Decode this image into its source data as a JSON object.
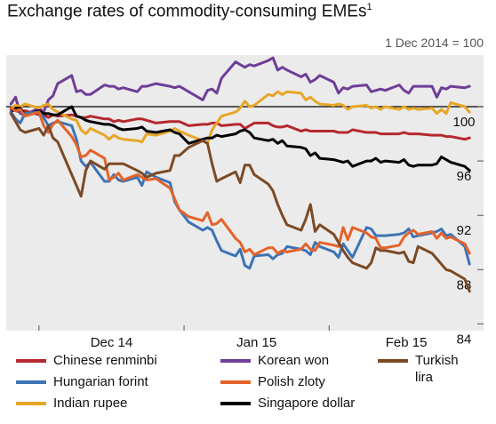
{
  "chart_data": {
    "type": "line",
    "title": "Exchange rates of commodity-consuming EMEs",
    "title_footnote": "1",
    "subtitle": "1 Dec 2014 = 100",
    "x_ticks": [
      "Dec 14",
      "Jan 15",
      "Feb 15"
    ],
    "x_tick_dates": [
      "2014-12-01",
      "2015-01-01",
      "2015-02-01"
    ],
    "x_range": [
      "2014-11-24",
      "2015-03-06"
    ],
    "x_dates": [
      "2014-11-25",
      "2014-11-26",
      "2014-11-27",
      "2014-11-28",
      "2014-12-01",
      "2014-12-02",
      "2014-12-03",
      "2014-12-04",
      "2014-12-05",
      "2014-12-08",
      "2014-12-09",
      "2014-12-10",
      "2014-12-11",
      "2014-12-12",
      "2014-12-15",
      "2014-12-16",
      "2014-12-17",
      "2014-12-18",
      "2014-12-19",
      "2014-12-22",
      "2014-12-23",
      "2014-12-24",
      "2014-12-26",
      "2014-12-29",
      "2014-12-30",
      "2014-12-31",
      "2015-01-02",
      "2015-01-05",
      "2015-01-06",
      "2015-01-07",
      "2015-01-08",
      "2015-01-09",
      "2015-01-12",
      "2015-01-13",
      "2015-01-14",
      "2015-01-15",
      "2015-01-16",
      "2015-01-19",
      "2015-01-20",
      "2015-01-21",
      "2015-01-22",
      "2015-01-23",
      "2015-01-26",
      "2015-01-27",
      "2015-01-28",
      "2015-01-29",
      "2015-01-30",
      "2015-02-02",
      "2015-02-03",
      "2015-02-04",
      "2015-02-05",
      "2015-02-06",
      "2015-02-09",
      "2015-02-10",
      "2015-02-11",
      "2015-02-12",
      "2015-02-13",
      "2015-02-16",
      "2015-02-17",
      "2015-02-18",
      "2015-02-19",
      "2015-02-20",
      "2015-02-23",
      "2015-02-24",
      "2015-02-25",
      "2015-02-26",
      "2015-02-27",
      "2015-03-02",
      "2015-03-03"
    ],
    "y_axis_side": "right",
    "y_ticks": [
      84,
      88,
      92,
      96,
      100
    ],
    "ylim": [
      83.5,
      103.8
    ],
    "reference_line": 100,
    "legend_position": "bottom",
    "series": [
      {
        "name": "Chinese renminbi",
        "color": "#b5282e",
        "values": [
          99.8,
          99.7,
          99.6,
          99.7,
          99.4,
          99.4,
          99.2,
          99.4,
          99.3,
          99.4,
          99.3,
          99.2,
          99.2,
          99.3,
          99.1,
          99.1,
          98.9,
          99.0,
          98.9,
          99.1,
          99.1,
          99.0,
          98.8,
          98.9,
          98.9,
          98.9,
          98.6,
          98.7,
          98.7,
          98.8,
          98.8,
          98.6,
          98.7,
          98.7,
          98.4,
          98.6,
          98.8,
          98.8,
          98.6,
          98.5,
          98.5,
          98.6,
          98.2,
          98.3,
          98.2,
          98.2,
          98.2,
          98.2,
          98.1,
          98.1,
          98.1,
          98.3,
          98.1,
          98.1,
          98.1,
          98.0,
          98.0,
          98.0,
          98.1,
          98.0,
          98.0,
          98.0,
          97.9,
          97.9,
          97.9,
          97.8,
          97.8,
          97.6,
          97.7
        ]
      },
      {
        "name": "Korean won",
        "color": "#6f3e98",
        "values": [
          100.2,
          100.7,
          99.5,
          99.4,
          99.9,
          99.6,
          100.5,
          100.8,
          101.7,
          102.3,
          101.1,
          101.2,
          100.9,
          100.9,
          101.6,
          101.5,
          101.5,
          101.3,
          101.4,
          101.1,
          101.5,
          101.5,
          101.7,
          101.5,
          101.4,
          101.5,
          101.1,
          100.5,
          101.2,
          101.3,
          101.0,
          102.1,
          103.3,
          103.1,
          102.9,
          103.1,
          103.0,
          103.4,
          103.6,
          102.7,
          102.9,
          102.7,
          102.2,
          102.4,
          101.8,
          102.0,
          102.3,
          101.8,
          101.0,
          101.4,
          101.3,
          101.5,
          101.6,
          101.1,
          101.2,
          101.3,
          101.2,
          101.6,
          101.2,
          101.0,
          101.5,
          101.5,
          101.5,
          100.7,
          101.4,
          101.3,
          101.5,
          101.4,
          101.5
        ]
      },
      {
        "name": "Indian rupee",
        "color": "#e7a626",
        "values": [
          99.9,
          100.1,
          100.0,
          100.2,
          99.9,
          100.1,
          100.2,
          99.8,
          99.6,
          99.1,
          99.0,
          98.3,
          98.0,
          98.4,
          97.9,
          97.6,
          97.9,
          97.7,
          97.6,
          97.5,
          97.4,
          98.0,
          97.9,
          98.2,
          98.4,
          98.2,
          97.9,
          97.5,
          97.3,
          98.3,
          98.8,
          99.3,
          99.6,
          99.9,
          100.4,
          100.0,
          100.1,
          100.9,
          100.8,
          101.1,
          100.9,
          101.1,
          101.0,
          100.5,
          100.7,
          100.4,
          100.2,
          100.1,
          100.2,
          100.1,
          99.8,
          100.0,
          100.1,
          99.9,
          100.0,
          99.8,
          100.0,
          99.8,
          100.0,
          99.8,
          99.9,
          99.8,
          99.9,
          99.5,
          99.8,
          99.5,
          100.3,
          100.0,
          99.6
        ]
      },
      {
        "name": "Singapore dollar",
        "color": "#000000",
        "values": [
          99.6,
          99.9,
          99.9,
          99.4,
          99.7,
          99.5,
          99.5,
          99.4,
          99.4,
          100.0,
          99.3,
          99.2,
          99.0,
          98.9,
          98.7,
          98.7,
          98.6,
          98.4,
          98.3,
          98.4,
          98.5,
          98.2,
          98.1,
          98.3,
          98.1,
          98.0,
          97.3,
          97.6,
          97.7,
          97.7,
          97.9,
          97.8,
          98.0,
          98.2,
          98.3,
          98.1,
          97.7,
          97.5,
          97.6,
          97.3,
          97.5,
          97.1,
          97.0,
          96.9,
          96.4,
          96.6,
          96.2,
          96.1,
          96.0,
          95.9,
          96.0,
          95.6,
          96.0,
          96.0,
          96.2,
          95.9,
          96.0,
          95.9,
          96.1,
          95.7,
          95.6,
          95.7,
          95.7,
          95.8,
          96.3,
          96.1,
          95.9,
          95.6,
          95.3
        ]
      },
      {
        "name": "Hungarian forint",
        "color": "#3d73b5",
        "values": [
          99.6,
          99.1,
          98.8,
          99.5,
          99.6,
          99.2,
          98.6,
          98.8,
          98.9,
          98.6,
          97.6,
          96.0,
          95.6,
          95.9,
          94.5,
          94.5,
          95.0,
          94.6,
          94.5,
          94.8,
          94.2,
          95.2,
          94.8,
          94.4,
          93.0,
          92.4,
          91.5,
          90.9,
          91.1,
          90.9,
          90.1,
          89.4,
          89.0,
          89.5,
          88.3,
          88.1,
          89.0,
          89.1,
          88.8,
          89.1,
          89.2,
          89.7,
          89.5,
          89.4,
          89.1,
          90.0,
          89.7,
          89.3,
          88.9,
          89.9,
          89.4,
          88.9,
          91.1,
          91.0,
          90.5,
          90.5,
          90.5,
          90.6,
          90.7,
          91.0,
          90.4,
          90.5,
          90.7,
          90.8,
          91.0,
          90.5,
          90.6,
          89.7,
          88.4
        ]
      },
      {
        "name": "Polish zloty",
        "color": "#e4632a",
        "values": [
          99.9,
          99.7,
          99.8,
          99.3,
          99.6,
          98.6,
          98.1,
          98.7,
          99.0,
          97.8,
          97.2,
          96.3,
          96.4,
          96.8,
          96.2,
          94.6,
          94.8,
          95.1,
          94.6,
          95.0,
          94.8,
          94.6,
          94.7,
          94.0,
          93.2,
          92.4,
          91.9,
          91.6,
          92.2,
          91.3,
          91.4,
          91.7,
          90.3,
          90.0,
          89.3,
          89.5,
          89.1,
          89.6,
          89.6,
          89.2,
          89.4,
          89.3,
          89.5,
          89.9,
          89.5,
          89.4,
          90.0,
          89.8,
          89.7,
          91.1,
          90.2,
          91.1,
          90.7,
          90.4,
          90.3,
          89.6,
          89.6,
          89.8,
          90.4,
          90.7,
          90.9,
          90.6,
          90.8,
          90.3,
          90.7,
          90.3,
          90.4,
          89.9,
          89.2
        ]
      },
      {
        "name": "Turkish lira",
        "color": "#7b4a25",
        "values": [
          99.5,
          98.9,
          98.3,
          98.1,
          98.4,
          97.9,
          98.6,
          97.7,
          97.4,
          95.0,
          94.2,
          93.4,
          95.3,
          96.0,
          95.4,
          95.8,
          95.8,
          95.8,
          95.8,
          95.3,
          95.1,
          94.8,
          95.1,
          95.3,
          96.4,
          96.4,
          97.0,
          97.5,
          97.3,
          95.8,
          94.5,
          94.7,
          95.2,
          94.4,
          95.7,
          95.7,
          95.0,
          94.3,
          93.8,
          92.8,
          92.0,
          91.3,
          90.9,
          91.7,
          92.8,
          90.8,
          91.3,
          90.6,
          90.0,
          89.4,
          88.9,
          88.5,
          88.1,
          88.5,
          89.6,
          89.4,
          89.4,
          89.2,
          89.3,
          88.6,
          88.5,
          89.7,
          89.2,
          88.8,
          88.4,
          88.0,
          87.9,
          87.3,
          86.4
        ]
      }
    ]
  },
  "legend": {
    "items": [
      {
        "label": "Chinese renminbi",
        "color": "#b5282e"
      },
      {
        "label": "Korean won",
        "color": "#6f3e98"
      },
      {
        "label": "Turkish\nlira",
        "color": "#7b4a25"
      },
      {
        "label": "Hungarian forint",
        "color": "#3d73b5"
      },
      {
        "label": "Polish zloty",
        "color": "#e4632a"
      },
      {
        "label": "Indian rupee",
        "color": "#e7a626"
      },
      {
        "label": "Singapore dollar",
        "color": "#000000"
      }
    ]
  },
  "grid": false
}
